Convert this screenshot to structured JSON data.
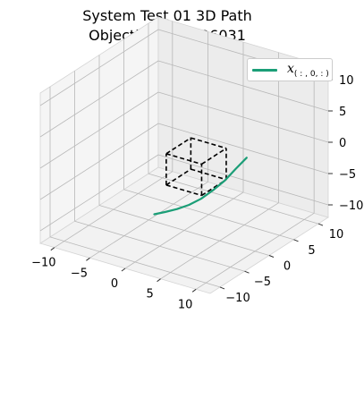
{
  "chart_data": {
    "type": "line",
    "projection": "3d",
    "title": "System Test 01 3D Path",
    "subtitle": "Objective = 0.726031",
    "xlim": [
      -12,
      12
    ],
    "ylim": [
      -12,
      12
    ],
    "zlim": [
      -12,
      12
    ],
    "x_ticks": [
      "−10",
      "−5",
      "0",
      "5",
      "10"
    ],
    "y_ticks": [
      "−10",
      "−5",
      "0",
      "5",
      "10"
    ],
    "z_ticks": [
      "−10",
      "−5",
      "0",
      "5",
      "10"
    ],
    "x_tick_values": [
      -10,
      -5,
      0,
      5,
      10
    ],
    "y_tick_values": [
      -10,
      -5,
      0,
      5,
      10
    ],
    "z_tick_values": [
      -10,
      -5,
      0,
      5,
      10
    ],
    "grid": true,
    "legend_position": "top-right",
    "series": [
      {
        "name": "x_(:,0,:)",
        "color": "#1b9e77",
        "x": [
          -2.5,
          -1.6,
          -0.6,
          0.4,
          1.4,
          2.4,
          3.4,
          4.3,
          5.2
        ],
        "y": [
          -2.5,
          -1.6,
          -0.6,
          0.4,
          1.4,
          2.4,
          3.4,
          4.3,
          5.2
        ],
        "z": [
          -9.0,
          -8.8,
          -8.5,
          -8.0,
          -7.2,
          -6.0,
          -4.6,
          -2.9,
          -1.3
        ]
      }
    ],
    "obstacle_box": {
      "color": "#000000",
      "style": "dashed",
      "x": [
        -1.5,
        3.5
      ],
      "y": [
        -1.5,
        3.5
      ],
      "z": [
        -4.5,
        0.5
      ]
    }
  },
  "legend": {
    "symbol": "x",
    "subscript": "( : , 0, : )"
  }
}
